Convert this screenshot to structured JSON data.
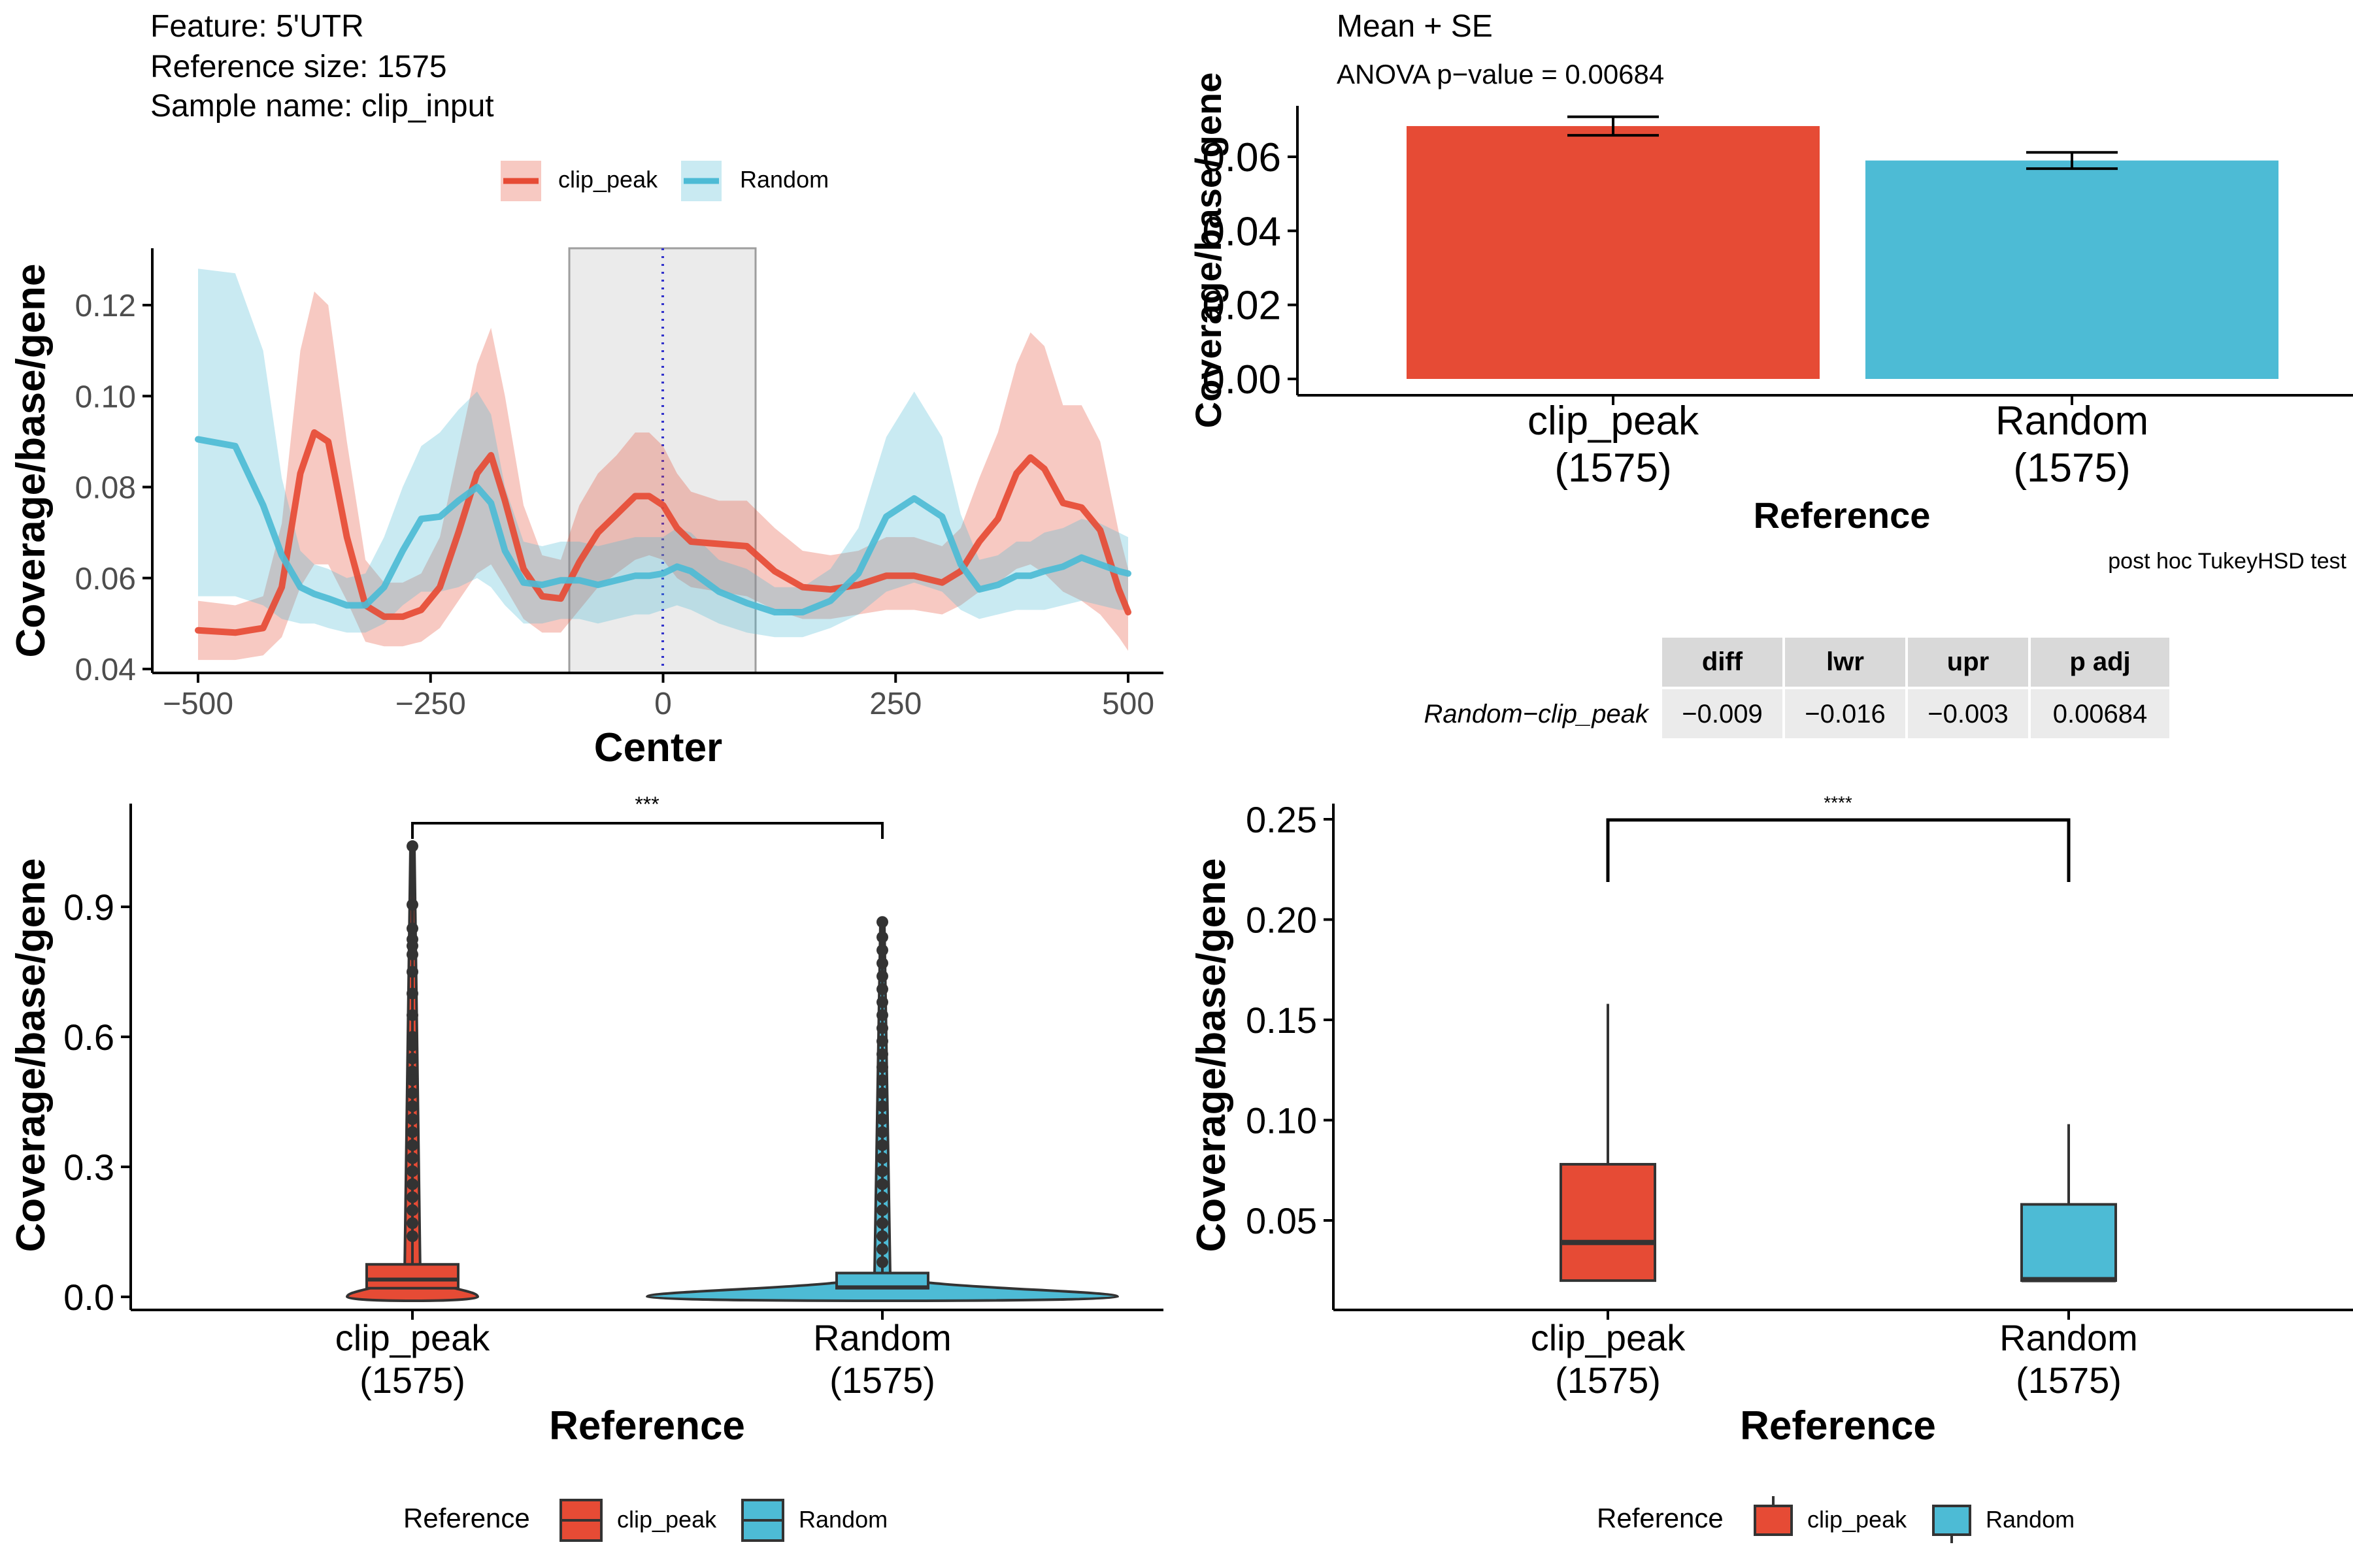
{
  "colors": {
    "clip_peak": "#E64B35",
    "random": "#4DBBD5",
    "axis": "#000000",
    "text": "#000000",
    "tick_text": "#4D4D4D",
    "table_header_bg": "#D9D9D9",
    "table_cell_bg": "#EBEBEB",
    "center_box": "#EBEBEB",
    "outlier": "#333333"
  },
  "metaplot": {
    "title_lines": [
      "Feature: 5'UTR",
      "Reference size: 1575",
      "Sample name: clip_input"
    ],
    "legend": [
      {
        "label": "clip_peak"
      },
      {
        "label": "Random"
      }
    ],
    "xlabel": "Center",
    "ylabel": "Coverage/base/gene",
    "xticks": [
      "−500",
      "−250",
      "0",
      "250",
      "500"
    ],
    "yticks": [
      "0.04",
      "0.06",
      "0.08",
      "0.10",
      "0.12"
    ]
  },
  "barplot": {
    "title": "Mean + SE",
    "subtitle": "ANOVA p−value = 0.00684",
    "ylabel": "Coverage/base/gene",
    "xlabel": "Reference",
    "yticks": [
      "0.00",
      "0.02",
      "0.04",
      "0.06"
    ],
    "categories": [
      {
        "name": "clip_peak",
        "n": "(1575)"
      },
      {
        "name": "Random",
        "n": "(1575)"
      }
    ]
  },
  "tukey": {
    "title": "post hoc TukeyHSD test",
    "headers": [
      "diff",
      "lwr",
      "upr",
      "p adj"
    ],
    "row_label": "Random−clip_peak",
    "values": [
      "−0.009",
      "−0.016",
      "−0.003",
      "0.00684"
    ]
  },
  "violin": {
    "ylabel": "Coverage/base/gene",
    "xlabel": "Reference",
    "yticks": [
      "0.0",
      "0.3",
      "0.6",
      "0.9"
    ],
    "significance": "***",
    "categories": [
      {
        "name": "clip_peak",
        "n": "(1575)"
      },
      {
        "name": "Random",
        "n": "(1575)"
      }
    ],
    "legend_title": "Reference",
    "legend": [
      {
        "label": "clip_peak"
      },
      {
        "label": "Random"
      }
    ]
  },
  "boxplot": {
    "ylabel": "Coverage/base/gene",
    "xlabel": "Reference",
    "yticks": [
      "0.05",
      "0.10",
      "0.15",
      "0.20",
      "0.25"
    ],
    "significance": "****",
    "categories": [
      {
        "name": "clip_peak",
        "n": "(1575)"
      },
      {
        "name": "Random",
        "n": "(1575)"
      }
    ],
    "legend_title": "Reference",
    "legend": [
      {
        "label": "clip_peak"
      },
      {
        "label": "Random"
      }
    ]
  },
  "chart_data": [
    {
      "type": "line",
      "xlabel": "Center",
      "ylabel": "Coverage/base/gene",
      "xlim": [
        -500,
        500
      ],
      "ylim": [
        0.04,
        0.13
      ],
      "center_box": [
        -100,
        100
      ],
      "center_line": 0,
      "legend_position": "top",
      "x": [
        -500,
        -460,
        -430,
        -410,
        -390,
        -375,
        -360,
        -340,
        -320,
        -300,
        -280,
        -260,
        -240,
        -220,
        -200,
        -185,
        -170,
        -150,
        -130,
        -110,
        -90,
        -70,
        -50,
        -30,
        -15,
        0,
        15,
        30,
        60,
        90,
        120,
        150,
        180,
        210,
        240,
        270,
        300,
        320,
        340,
        360,
        380,
        395,
        410,
        430,
        450,
        470,
        490,
        500
      ],
      "series": [
        {
          "name": "clip_peak",
          "y": [
            0.0485,
            0.048,
            0.049,
            0.058,
            0.083,
            0.092,
            0.09,
            0.069,
            0.054,
            0.0515,
            0.0515,
            0.053,
            0.058,
            0.07,
            0.083,
            0.087,
            0.077,
            0.062,
            0.056,
            0.0555,
            0.0635,
            0.07,
            0.074,
            0.078,
            0.078,
            0.076,
            0.071,
            0.068,
            0.0675,
            0.067,
            0.0615,
            0.058,
            0.0575,
            0.0585,
            0.0605,
            0.0605,
            0.059,
            0.0615,
            0.068,
            0.073,
            0.083,
            0.0865,
            0.084,
            0.0765,
            0.0755,
            0.0705,
            0.0575,
            0.0525
          ],
          "lower": [
            0.042,
            0.042,
            0.043,
            0.047,
            0.058,
            0.063,
            0.063,
            0.055,
            0.046,
            0.045,
            0.045,
            0.046,
            0.049,
            0.055,
            0.061,
            0.063,
            0.058,
            0.051,
            0.048,
            0.048,
            0.053,
            0.058,
            0.061,
            0.064,
            0.065,
            0.064,
            0.06,
            0.058,
            0.057,
            0.056,
            0.053,
            0.051,
            0.051,
            0.052,
            0.053,
            0.053,
            0.052,
            0.054,
            0.057,
            0.059,
            0.062,
            0.063,
            0.061,
            0.057,
            0.055,
            0.052,
            0.047,
            0.044
          ],
          "upper": [
            0.055,
            0.054,
            0.056,
            0.072,
            0.11,
            0.123,
            0.12,
            0.09,
            0.064,
            0.059,
            0.059,
            0.061,
            0.069,
            0.088,
            0.107,
            0.115,
            0.1,
            0.076,
            0.065,
            0.064,
            0.076,
            0.083,
            0.087,
            0.092,
            0.092,
            0.089,
            0.083,
            0.079,
            0.077,
            0.077,
            0.071,
            0.066,
            0.065,
            0.066,
            0.069,
            0.069,
            0.067,
            0.071,
            0.082,
            0.092,
            0.107,
            0.114,
            0.111,
            0.098,
            0.098,
            0.09,
            0.07,
            0.062
          ]
        },
        {
          "name": "Random",
          "y": [
            0.0905,
            0.089,
            0.076,
            0.065,
            0.058,
            0.0565,
            0.0555,
            0.054,
            0.054,
            0.058,
            0.066,
            0.073,
            0.0735,
            0.077,
            0.08,
            0.0765,
            0.066,
            0.059,
            0.0585,
            0.0595,
            0.0595,
            0.0585,
            0.0595,
            0.0605,
            0.0605,
            0.061,
            0.0625,
            0.0615,
            0.057,
            0.0545,
            0.0525,
            0.0525,
            0.055,
            0.061,
            0.0735,
            0.0775,
            0.0735,
            0.063,
            0.0575,
            0.0585,
            0.0605,
            0.0605,
            0.0615,
            0.0625,
            0.0645,
            0.063,
            0.0615,
            0.061
          ],
          "lower": [
            0.056,
            0.056,
            0.054,
            0.051,
            0.05,
            0.05,
            0.049,
            0.048,
            0.048,
            0.05,
            0.054,
            0.057,
            0.057,
            0.058,
            0.06,
            0.058,
            0.054,
            0.05,
            0.05,
            0.051,
            0.051,
            0.05,
            0.051,
            0.052,
            0.052,
            0.053,
            0.054,
            0.053,
            0.05,
            0.048,
            0.047,
            0.047,
            0.049,
            0.052,
            0.057,
            0.059,
            0.057,
            0.053,
            0.051,
            0.052,
            0.053,
            0.053,
            0.053,
            0.054,
            0.055,
            0.054,
            0.053,
            0.053
          ],
          "upper": [
            0.128,
            0.127,
            0.11,
            0.082,
            0.066,
            0.063,
            0.062,
            0.06,
            0.061,
            0.069,
            0.08,
            0.089,
            0.092,
            0.097,
            0.101,
            0.096,
            0.08,
            0.068,
            0.067,
            0.068,
            0.068,
            0.067,
            0.068,
            0.069,
            0.069,
            0.069,
            0.071,
            0.07,
            0.064,
            0.062,
            0.058,
            0.058,
            0.062,
            0.071,
            0.091,
            0.101,
            0.091,
            0.074,
            0.064,
            0.065,
            0.068,
            0.068,
            0.07,
            0.071,
            0.073,
            0.072,
            0.07,
            0.069
          ]
        }
      ]
    },
    {
      "type": "bar",
      "title": "Mean + SE",
      "subtitle": "ANOVA p−value = 0.00684",
      "xlabel": "Reference",
      "ylabel": "Coverage/base/gene",
      "categories": [
        "clip_peak",
        "Random"
      ],
      "values": [
        0.0683,
        0.059
      ],
      "se": [
        0.0025,
        0.0022
      ],
      "ylim": [
        0,
        0.072
      ]
    },
    {
      "type": "table",
      "title": "post hoc TukeyHSD test",
      "columns": [
        "diff",
        "lwr",
        "upr",
        "p adj"
      ],
      "rows": [
        {
          "label": "Random−clip_peak",
          "values": [
            -0.009,
            -0.016,
            -0.003,
            0.00684
          ]
        }
      ]
    },
    {
      "type": "violin",
      "xlabel": "Reference",
      "ylabel": "Coverage/base/gene",
      "categories": [
        "clip_peak",
        "Random"
      ],
      "ylim": [
        0,
        1.07
      ],
      "boxes": [
        {
          "name": "clip_peak",
          "whisker_low": 0.0,
          "q1": 0.02,
          "median": 0.04,
          "q3": 0.075,
          "whisker_high": 1.04
        },
        {
          "name": "Random",
          "whisker_low": 0.0,
          "q1": 0.02,
          "median": 0.022,
          "q3": 0.055,
          "whisker_high": 0.865
        }
      ],
      "outliers": [
        {
          "name": "clip_peak",
          "values": [
            1.04,
            0.905,
            0.85,
            0.825,
            0.81,
            0.79,
            0.75,
            0.7,
            0.65,
            0.6,
            0.58,
            0.55,
            0.52,
            0.5,
            0.47,
            0.44,
            0.41,
            0.38,
            0.35,
            0.32,
            0.29,
            0.26,
            0.23,
            0.2,
            0.17,
            0.14
          ]
        },
        {
          "name": "Random",
          "values": [
            0.865,
            0.83,
            0.8,
            0.77,
            0.74,
            0.71,
            0.68,
            0.65,
            0.62,
            0.59,
            0.56,
            0.53,
            0.5,
            0.47,
            0.44,
            0.41,
            0.38,
            0.35,
            0.32,
            0.29,
            0.26,
            0.23,
            0.2,
            0.17,
            0.14,
            0.11,
            0.08
          ]
        }
      ],
      "significance": "***"
    },
    {
      "type": "box",
      "xlabel": "Reference",
      "ylabel": "Coverage/base/gene",
      "categories": [
        "clip_peak",
        "Random"
      ],
      "ylim": [
        0.0,
        0.26
      ],
      "boxes": [
        {
          "name": "clip_peak",
          "whisker_low": 0.02,
          "q1": 0.02,
          "median": 0.039,
          "q3": 0.078,
          "whisker_high": 0.158
        },
        {
          "name": "Random",
          "whisker_low": 0.02,
          "q1": 0.02,
          "median": 0.0205,
          "q3": 0.058,
          "whisker_high": 0.098
        }
      ],
      "significance": "****"
    }
  ]
}
